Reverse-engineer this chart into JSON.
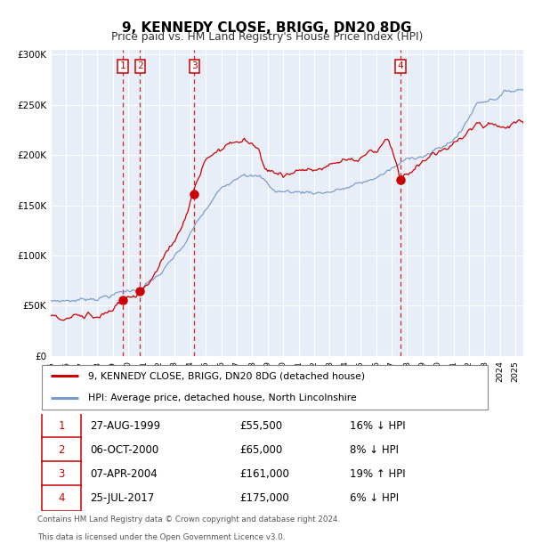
{
  "title": "9, KENNEDY CLOSE, BRIGG, DN20 8DG",
  "subtitle": "Price paid vs. HM Land Registry's House Price Index (HPI)",
  "legend_line1": "9, KENNEDY CLOSE, BRIGG, DN20 8DG (detached house)",
  "legend_line2": "HPI: Average price, detached house, North Lincolnshire",
  "transactions": [
    {
      "num": "1",
      "date": "27-AUG-1999",
      "price_str": "£55,500",
      "pct_str": "16% ↓ HPI",
      "year": 1999.65,
      "price": 55500
    },
    {
      "num": "2",
      "date": "06-OCT-2000",
      "price_str": "£65,000",
      "pct_str": "8% ↓ HPI",
      "year": 2000.77,
      "price": 65000
    },
    {
      "num": "3",
      "date": "07-APR-2004",
      "price_str": "£161,000",
      "pct_str": "19% ↑ HPI",
      "year": 2004.27,
      "price": 161000
    },
    {
      "num": "4",
      "date": "25-JUL-2017",
      "price_str": "£175,000",
      "pct_str": "6% ↓ HPI",
      "year": 2017.56,
      "price": 175000
    }
  ],
  "price_color": "#cc0000",
  "hpi_color": "#7799cc",
  "vline_color": "#cc0000",
  "plot_bg": "#e8eef8",
  "footer_line1": "Contains HM Land Registry data © Crown copyright and database right 2024.",
  "footer_line2": "This data is licensed under the Open Government Licence v3.0.",
  "ylim": [
    0,
    300000
  ],
  "yticks": [
    0,
    50000,
    100000,
    150000,
    200000,
    250000,
    300000
  ],
  "xlim_start": 1995.0,
  "xlim_end": 2025.5
}
